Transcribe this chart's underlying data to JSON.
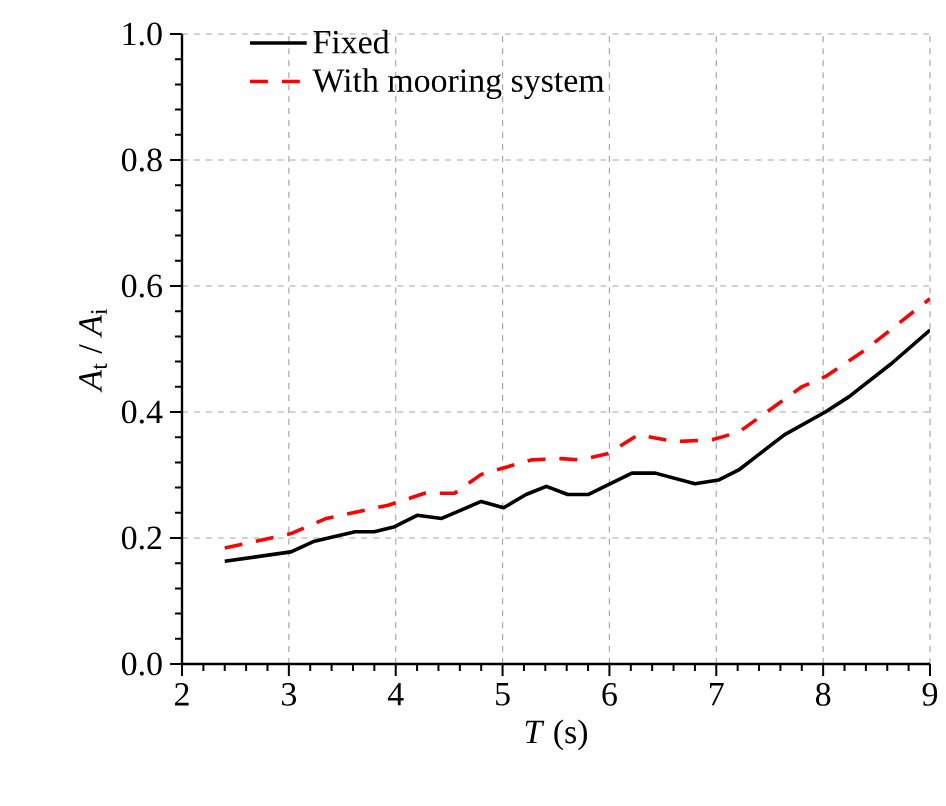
{
  "chart_data": {
    "type": "line",
    "xlabel": "*T* (s)",
    "ylabel": "*A*$_{t}$ / *A*$_{i}$",
    "xlim": [
      2,
      9
    ],
    "xticks": [
      2,
      3,
      4,
      5,
      6,
      7,
      8,
      9
    ],
    "ylim": [
      0,
      1.0
    ],
    "yticks": [
      {
        "value": 0,
        "label": "0.0"
      },
      {
        "value": 0.2,
        "label": "0.2"
      },
      {
        "value": 0.4,
        "label": "0.4"
      },
      {
        "value": 0.6,
        "label": "0.6"
      },
      {
        "value": 0.8,
        "label": "0.8"
      },
      {
        "value": 1.0,
        "label": "1.0"
      }
    ],
    "grid": true,
    "legend": "top left",
    "series": [
      {
        "name": "Fixed",
        "color": "#000000",
        "line_style": "solid",
        "x": [
          2.4,
          3.02,
          3.24,
          3.62,
          3.8,
          3.99,
          4.2,
          4.43,
          4.8,
          5.01,
          5.22,
          5.41,
          5.61,
          5.8,
          6.21,
          6.43,
          6.8,
          7.02,
          7.21,
          7.64,
          8.02,
          8.24,
          8.64,
          9.0
        ],
        "values": [
          0.163,
          0.178,
          0.195,
          0.21,
          0.21,
          0.218,
          0.236,
          0.231,
          0.258,
          0.248,
          0.269,
          0.282,
          0.269,
          0.269,
          0.303,
          0.303,
          0.286,
          0.292,
          0.308,
          0.364,
          0.4,
          0.424,
          0.477,
          0.53
        ]
      },
      {
        "name": "With mooring system",
        "color": "#ff0000",
        "line_style": "dashed",
        "x": [
          2.4,
          3.02,
          3.35,
          3.93,
          4.27,
          4.55,
          4.8,
          5.27,
          5.55,
          5.72,
          5.99,
          6.27,
          6.61,
          6.96,
          7.21,
          7.8,
          8.02,
          8.39,
          9.0
        ],
        "values": [
          0.184,
          0.207,
          0.231,
          0.252,
          0.271,
          0.271,
          0.301,
          0.324,
          0.326,
          0.324,
          0.334,
          0.364,
          0.353,
          0.356,
          0.368,
          0.44,
          0.456,
          0.498,
          0.58
        ]
      }
    ]
  }
}
